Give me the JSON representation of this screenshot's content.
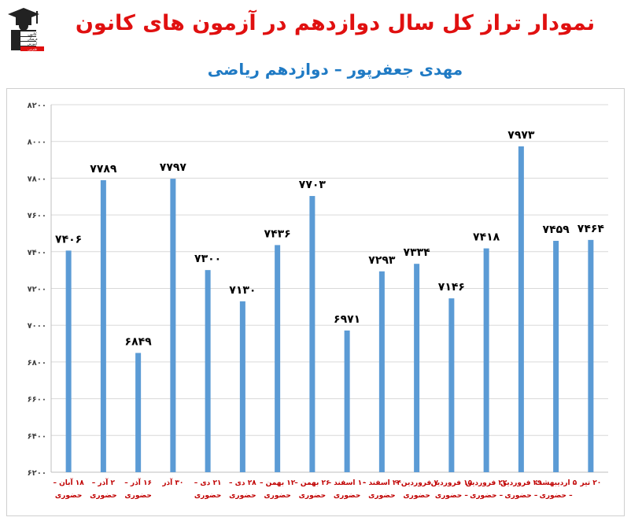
{
  "header": {
    "title": "نمودار تراز کل سال دوازدهم در آزمون های کانون",
    "subtitle": "مهدی جعفرپور – دوازدهم ریاضی"
  },
  "logo": {
    "icon": "graduate-logo-icon",
    "text_1": "کانون",
    "text_2": "فرهنگی",
    "text_3": "آموزش",
    "text_4": "قلم‌چی"
  },
  "colors": {
    "bar": "#5b9bd5",
    "title": "#e01010",
    "subtitle": "#1f7ac4",
    "xlabel": "#c00000",
    "grid": "#d9d9d9"
  },
  "chart_data": {
    "type": "bar",
    "title": "نمودار تراز کل سال دوازدهم در آزمون های کانون",
    "subtitle": "مهدی جعفرپور – دوازدهم ریاضی",
    "ylim": [
      6200,
      8200
    ],
    "yticks": [
      "۶۲۰۰",
      "۶۴۰۰",
      "۶۶۰۰",
      "۶۸۰۰",
      "۷۰۰۰",
      "۷۲۰۰",
      "۷۴۰۰",
      "۷۶۰۰",
      "۷۸۰۰",
      "۸۰۰۰",
      "۸۲۰۰"
    ],
    "grid": true,
    "categories": [
      [
        "۱۸ آبان –",
        "حضوری"
      ],
      [
        "۲ آذر –",
        "حضوری"
      ],
      [
        "۱۶ آذر –",
        "حضوری"
      ],
      [
        "۳۰ آذر",
        ""
      ],
      [
        "۲۱ دی –",
        "حضوری"
      ],
      [
        "۲۸ دی –",
        "حضوری"
      ],
      [
        "۱۲ بهمن –",
        "حضوری"
      ],
      [
        "۲۶ بهمن –",
        "حضوری"
      ],
      [
        "۱۰ اسفند –",
        "حضوری"
      ],
      [
        "۲۴ اسفند –",
        "حضوری"
      ],
      [
        "۷ فروردین –",
        "حضوری"
      ],
      [
        "۱۵ فروردین",
        "– حضوری"
      ],
      [
        "۲۲ فروردین",
        "– حضوری"
      ],
      [
        "۲۹ فروردین",
        "– حضوری"
      ],
      [
        "۵ اردیبهشت",
        "– حضوری"
      ],
      [
        "۲۰ تیر",
        ""
      ]
    ],
    "values": [
      7406,
      7789,
      6849,
      7797,
      7300,
      7130,
      7436,
      7703,
      6971,
      7293,
      7334,
      7146,
      7418,
      7973,
      7459,
      7464
    ],
    "labels": [
      "۷۴۰۶",
      "۷۷۸۹",
      "۶۸۴۹",
      "۷۷۹۷",
      "۷۳۰۰",
      "۷۱۳۰",
      "۷۴۳۶",
      "۷۷۰۳",
      "۶۹۷۱",
      "۷۲۹۳",
      "۷۳۳۴",
      "۷۱۴۶",
      "۷۴۱۸",
      "۷۹۷۳",
      "۷۴۵۹",
      "۷۴۶۴"
    ]
  }
}
